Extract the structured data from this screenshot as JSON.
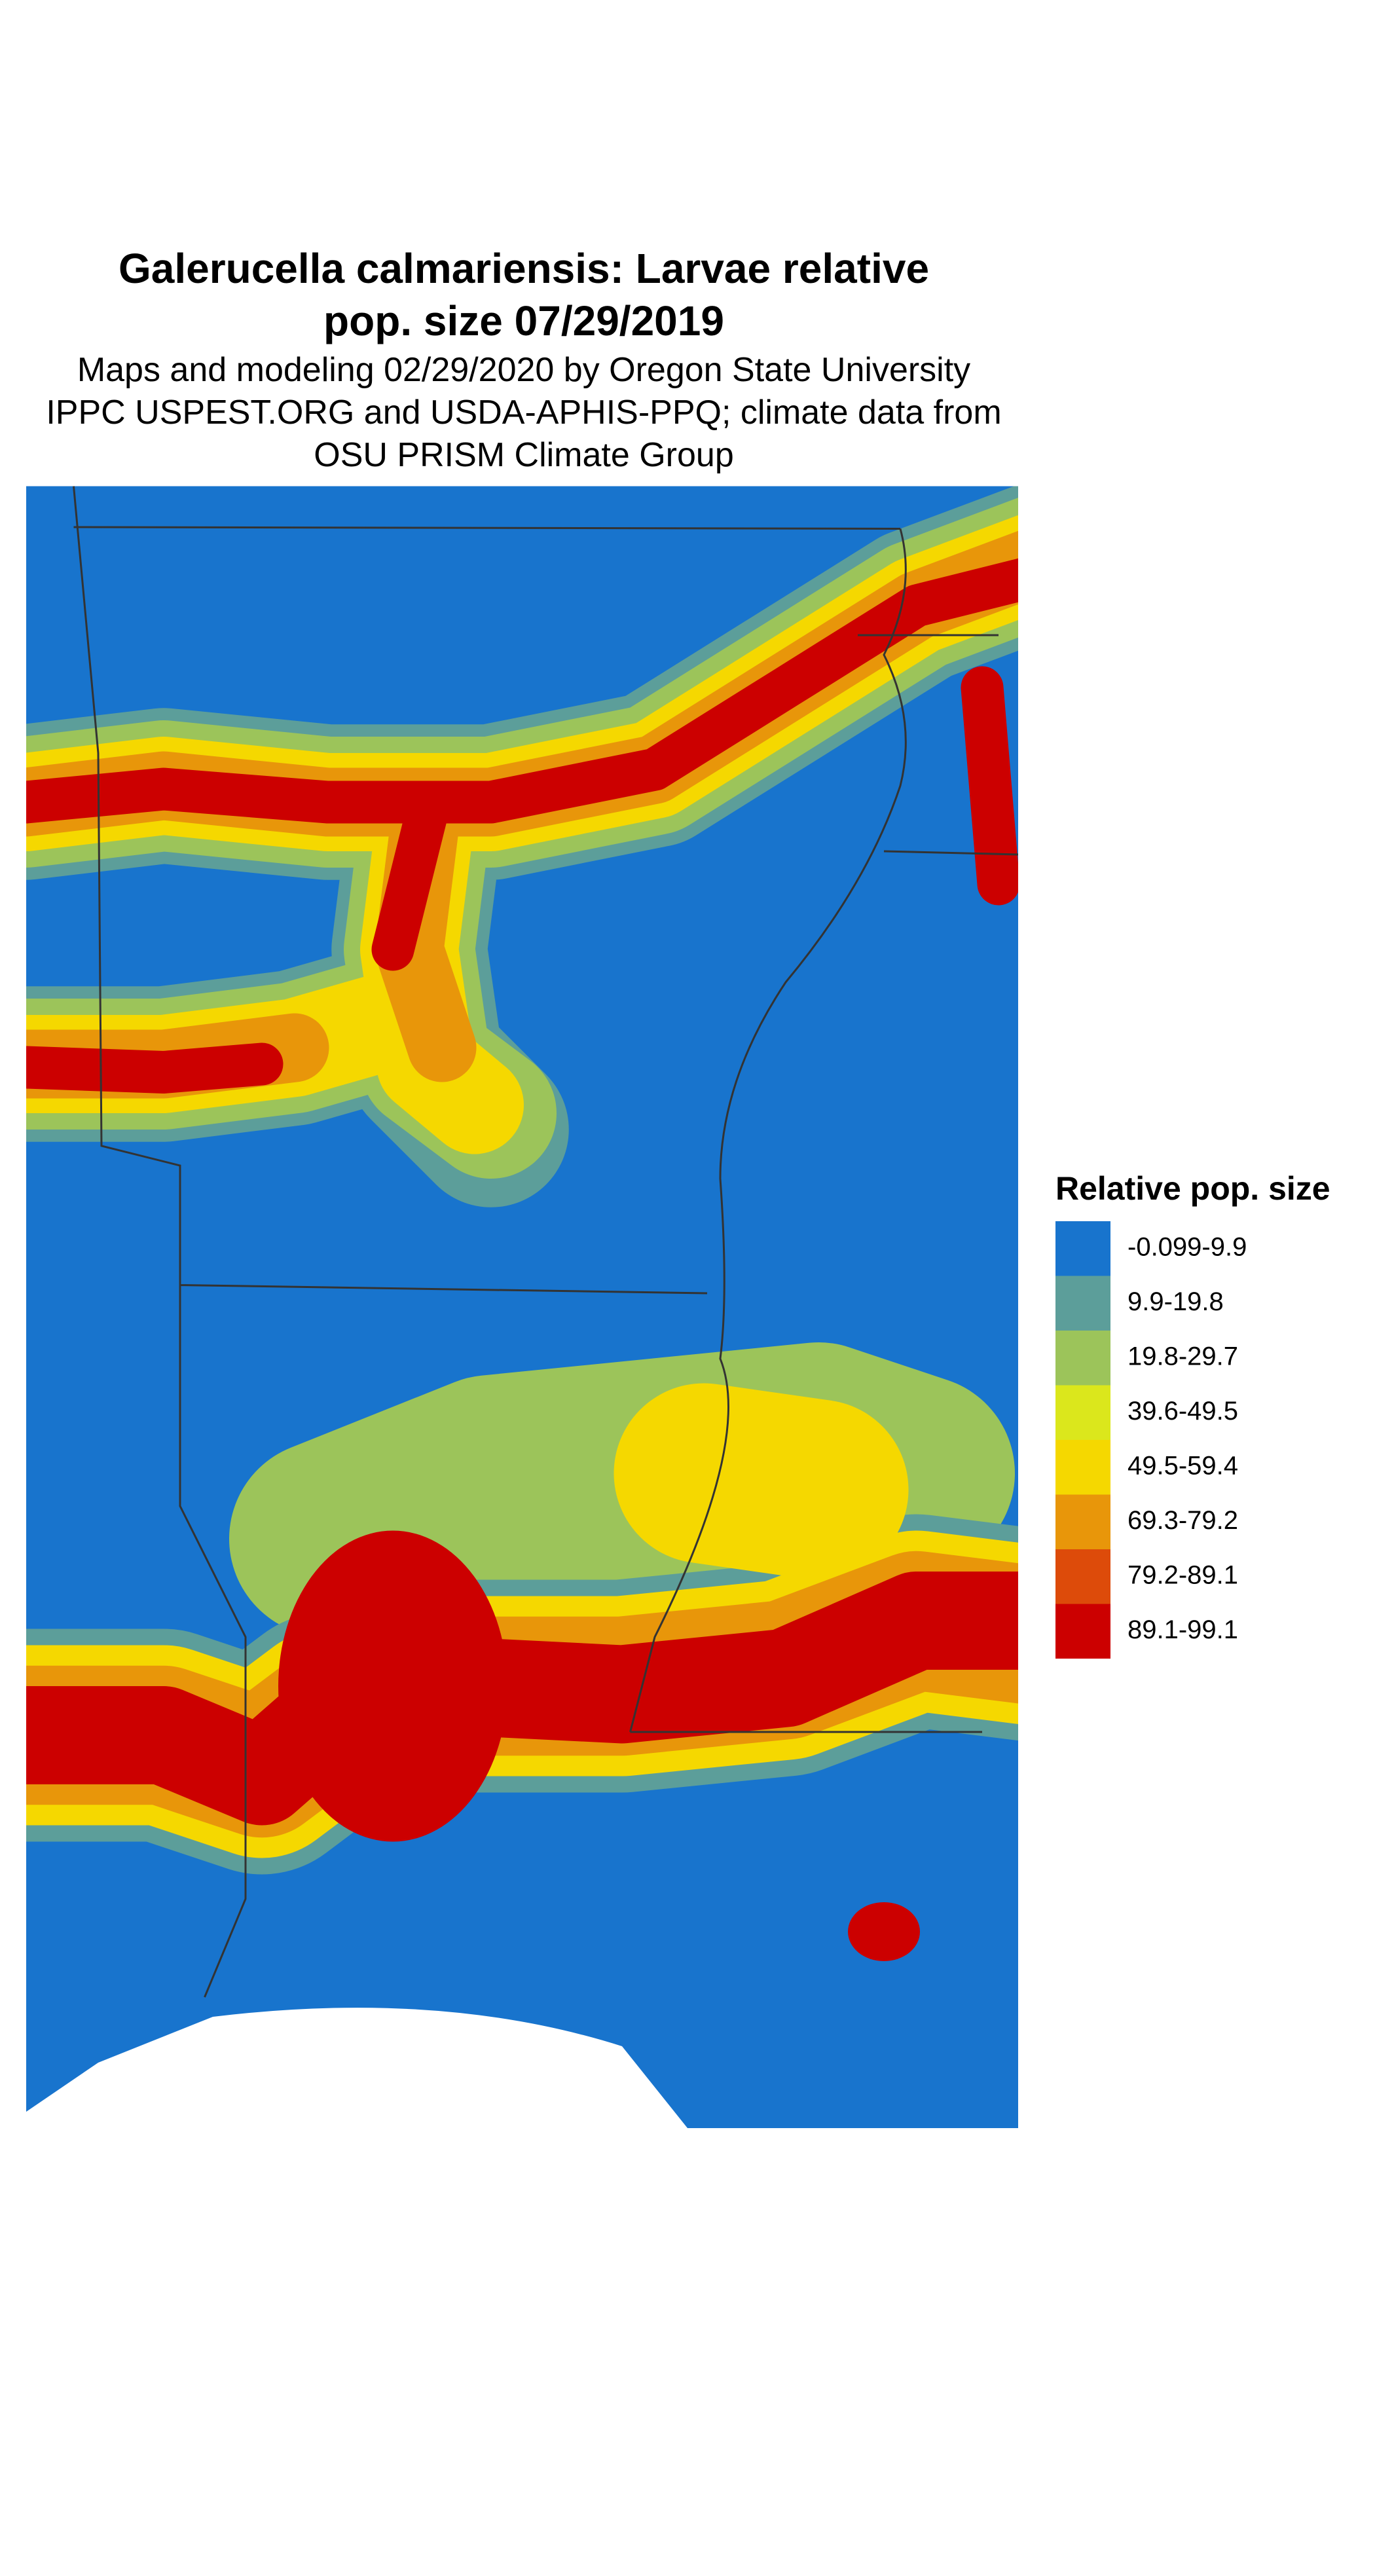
{
  "title": [
    "Galerucella calmariensis: Larvae relative",
    "pop. size 07/29/2019"
  ],
  "subtitle": [
    "Maps and modeling 02/29/2020 by Oregon State University",
    "IPPC USPEST.ORG and USDA-APHIS-PPQ; climate data from",
    "OSU PRISM Climate Group"
  ],
  "legend": {
    "title": "Relative pop. size",
    "items": [
      {
        "label": "-0.099-9.9",
        "color": "#1874cd"
      },
      {
        "label": "9.9-19.8",
        "color": "#5c9e9a"
      },
      {
        "label": "19.8-29.7",
        "color": "#9cc45a"
      },
      {
        "label": "39.6-49.5",
        "color": "#dbe71c"
      },
      {
        "label": "49.5-59.4",
        "color": "#f5d800"
      },
      {
        "label": "69.3-79.2",
        "color": "#e8960a"
      },
      {
        "label": "79.2-89.1",
        "color": "#dd4b0a"
      },
      {
        "label": "89.1-99.1",
        "color": "#cc0000"
      }
    ]
  }
}
